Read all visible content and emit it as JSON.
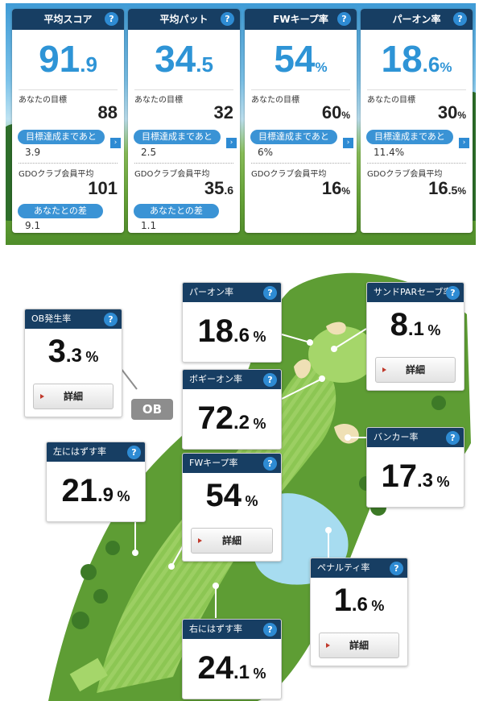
{
  "summary": [
    {
      "title": "平均スコア",
      "int": "91",
      "dec": ".9",
      "unit": "",
      "goal_label": "あなたの目標",
      "goal_int": "88",
      "goal_dec": "",
      "goal_unit": "",
      "gap_label": "目標達成まであと",
      "gap_value": "3.9",
      "avg_label": "GDOクラブ会員平均",
      "avg_int": "101",
      "avg_dec": "",
      "avg_unit": "",
      "diff_label": "あなたとの差",
      "diff_value": "9.1"
    },
    {
      "title": "平均パット",
      "int": "34",
      "dec": ".5",
      "unit": "",
      "goal_label": "あなたの目標",
      "goal_int": "32",
      "goal_dec": "",
      "goal_unit": "",
      "gap_label": "目標達成まであと",
      "gap_value": "2.5",
      "avg_label": "GDOクラブ会員平均",
      "avg_int": "35",
      "avg_dec": ".6",
      "avg_unit": "",
      "diff_label": "あなたとの差",
      "diff_value": "1.1"
    },
    {
      "title": "FWキープ率",
      "int": "54",
      "dec": "",
      "unit": "%",
      "goal_label": "あなたの目標",
      "goal_int": "60",
      "goal_dec": "",
      "goal_unit": "%",
      "gap_label": "目標達成まであと",
      "gap_value": "6%",
      "avg_label": "GDOクラブ会員平均",
      "avg_int": "16",
      "avg_dec": "",
      "avg_unit": "%",
      "diff_label": "",
      "diff_value": ""
    },
    {
      "title": "パーオン率",
      "int": "18",
      "dec": ".6",
      "unit": "%",
      "goal_label": "あなたの目標",
      "goal_int": "30",
      "goal_dec": "",
      "goal_unit": "%",
      "gap_label": "目標達成まであと",
      "gap_value": "11.4%",
      "avg_label": "GDOクラブ会員平均",
      "avg_int": "16",
      "avg_dec": ".5",
      "avg_unit": "%",
      "diff_label": "",
      "diff_value": ""
    }
  ],
  "help_icon": "?",
  "arrow_icon": "›",
  "ob_label": "OB",
  "stats": {
    "ob": {
      "title": "OB発生率",
      "int": "3",
      "dec": ".3",
      "unit": "%",
      "detail": "詳細"
    },
    "paron": {
      "title": "パーオン率",
      "int": "18",
      "dec": ".6",
      "unit": "%"
    },
    "bogey": {
      "title": "ボギーオン率",
      "int": "72",
      "dec": ".2",
      "unit": "%"
    },
    "sandpar": {
      "title": "サンドPARセーブ率",
      "int": "8",
      "dec": ".1",
      "unit": "%",
      "detail": "詳細"
    },
    "bunker": {
      "title": "バンカー率",
      "int": "17",
      "dec": ".3",
      "unit": "%"
    },
    "left": {
      "title": "左にはずす率",
      "int": "21",
      "dec": ".9",
      "unit": "%"
    },
    "fw": {
      "title": "FWキープ率",
      "int": "54",
      "dec": "",
      "unit": "%",
      "detail": "詳細"
    },
    "penalty": {
      "title": "ペナルティ率",
      "int": "1",
      "dec": ".6",
      "unit": "%",
      "detail": "詳細"
    },
    "right": {
      "title": "右にはずす率",
      "int": "24",
      "dec": ".1",
      "unit": "%"
    }
  },
  "colors": {
    "header": "#173e63",
    "accent": "#2e94d6",
    "fairway": "#6fb33f",
    "water": "#a7dcf0"
  }
}
